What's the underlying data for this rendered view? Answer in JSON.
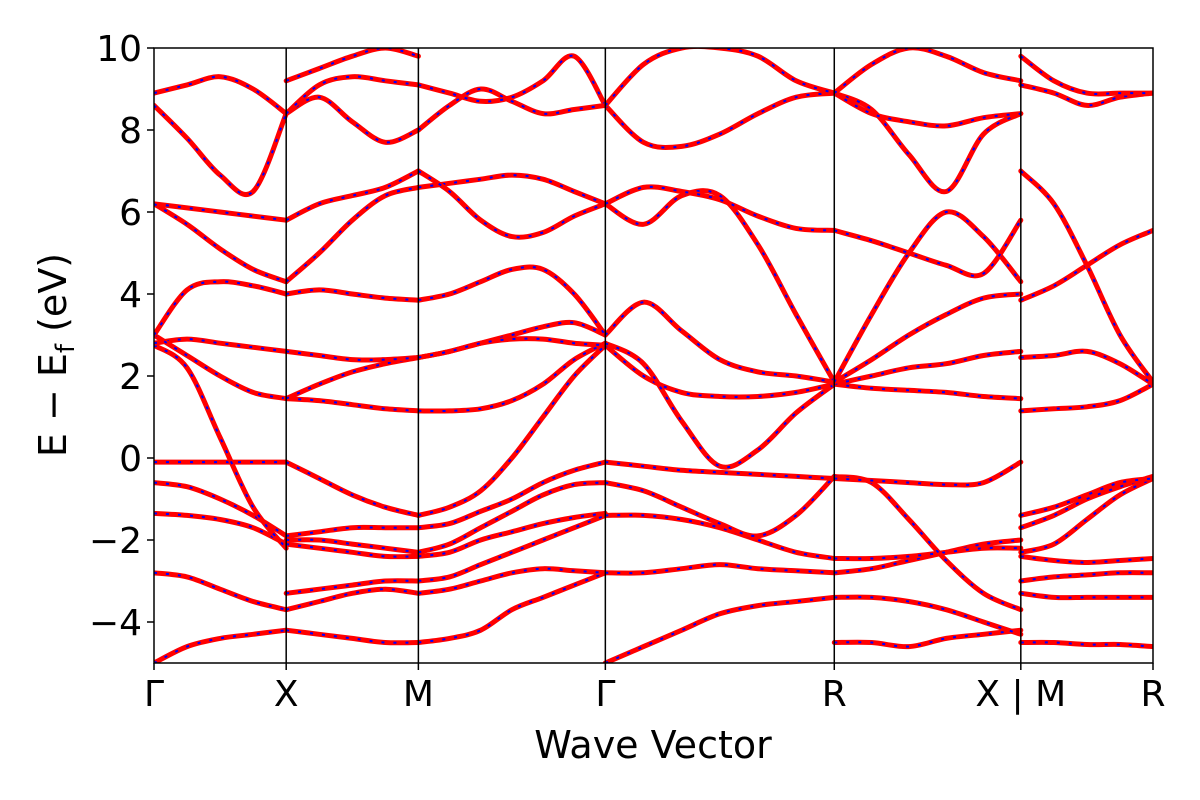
{
  "chart_data": {
    "type": "line",
    "title": "",
    "xlabel": "Wave Vector",
    "ylabel": "E − E",
    "ylabel_subscript": "f",
    "ylabel_unit": " (eV)",
    "ylim": [
      -5,
      10
    ],
    "xlim": [
      0,
      1
    ],
    "yticks": [
      -4,
      -2,
      0,
      2,
      4,
      6,
      8,
      10
    ],
    "ytick_labels": [
      "−4",
      "−2",
      "0",
      "2",
      "4",
      "6",
      "8",
      "10"
    ],
    "kpoints": [
      {
        "label": "Γ",
        "x": 0.0
      },
      {
        "label": "X",
        "x": 0.1525
      },
      {
        "label": "M",
        "x": 0.305
      },
      {
        "label": "Γ",
        "x": 0.5207
      },
      {
        "label": "R",
        "x": 0.7848
      },
      {
        "label": "X | M",
        "x": 1.0
      },
      {
        "label": "R",
        "x": 1.1525
      }
    ],
    "xrange": [
      0,
      1.1525
    ],
    "grid": false,
    "legend": "none",
    "colors": {
      "line": "#ff0000",
      "dash": "#0000ff",
      "kline": "#000000"
    },
    "segments": [
      {
        "name": "Gamma-X",
        "start": 0.0,
        "end": 0.1525,
        "bands": [
          [
            -5.0,
            -4.6,
            -4.4,
            -4.3,
            -4.2
          ],
          [
            -2.8,
            -2.9,
            -3.2,
            -3.5,
            -3.7
          ],
          [
            -1.35,
            -1.4,
            -1.5,
            -1.7,
            -2.1
          ],
          [
            -0.6,
            -0.7,
            -1.0,
            -1.4,
            -1.9
          ],
          [
            -0.1,
            -0.1,
            -0.1,
            -0.1,
            -0.1
          ],
          [
            2.75,
            2.2,
            0.5,
            -1.2,
            -2.2
          ],
          [
            2.8,
            2.9,
            2.8,
            2.7,
            2.6
          ],
          [
            3.0,
            2.5,
            2.0,
            1.6,
            1.45
          ],
          [
            3.0,
            4.1,
            4.3,
            4.2,
            4.0
          ],
          [
            6.2,
            6.1,
            6.0,
            5.9,
            5.8
          ],
          [
            6.2,
            5.7,
            5.1,
            4.6,
            4.3
          ],
          [
            8.6,
            7.8,
            6.9,
            6.5,
            8.4
          ],
          [
            8.9,
            9.1,
            9.3,
            9.0,
            8.4
          ]
        ]
      },
      {
        "name": "X-M",
        "start": 0.1525,
        "end": 0.305,
        "bands": [
          [
            -4.2,
            -4.3,
            -4.4,
            -4.5,
            -4.5
          ],
          [
            -3.7,
            -3.5,
            -3.3,
            -3.2,
            -3.3
          ],
          [
            -3.3,
            -3.2,
            -3.1,
            -3.0,
            -3.0
          ],
          [
            -2.1,
            -2.2,
            -2.3,
            -2.4,
            -2.4
          ],
          [
            -2.0,
            -2.0,
            -2.1,
            -2.2,
            -2.3
          ],
          [
            -1.9,
            -1.8,
            -1.7,
            -1.7,
            -1.7
          ],
          [
            -0.1,
            -0.5,
            -0.9,
            -1.2,
            -1.4
          ],
          [
            1.45,
            1.4,
            1.3,
            1.2,
            1.15
          ],
          [
            1.45,
            1.8,
            2.1,
            2.3,
            2.45
          ],
          [
            2.6,
            2.5,
            2.4,
            2.4,
            2.45
          ],
          [
            4.0,
            4.1,
            4.0,
            3.9,
            3.85
          ],
          [
            4.3,
            5.0,
            5.8,
            6.4,
            6.6
          ],
          [
            5.8,
            6.2,
            6.4,
            6.6,
            7.0
          ],
          [
            8.4,
            8.8,
            8.2,
            7.7,
            8.0
          ],
          [
            8.4,
            9.1,
            9.3,
            9.2,
            9.1
          ],
          [
            9.2,
            9.5,
            9.8,
            10.0,
            9.8
          ]
        ]
      },
      {
        "name": "M-Gamma",
        "start": 0.305,
        "end": 0.5207,
        "bands": [
          [
            -4.5,
            -4.4,
            -4.2,
            -3.7,
            -3.4,
            -3.1,
            -2.8
          ],
          [
            -3.3,
            -3.2,
            -3.0,
            -2.8,
            -2.7,
            -2.75,
            -2.8
          ],
          [
            -3.0,
            -2.9,
            -2.6,
            -2.3,
            -2.0,
            -1.7,
            -1.4
          ],
          [
            -2.4,
            -2.3,
            -2.0,
            -1.8,
            -1.6,
            -1.45,
            -1.35
          ],
          [
            -2.3,
            -2.1,
            -1.7,
            -1.3,
            -0.9,
            -0.65,
            -0.6
          ],
          [
            -1.7,
            -1.6,
            -1.3,
            -1.0,
            -0.6,
            -0.3,
            -0.1
          ],
          [
            -1.4,
            -1.2,
            -0.8,
            0.0,
            1.0,
            2.0,
            2.75
          ],
          [
            1.15,
            1.15,
            1.2,
            1.4,
            1.8,
            2.4,
            2.8
          ],
          [
            2.45,
            2.6,
            2.8,
            3.0,
            3.2,
            3.3,
            3.0
          ],
          [
            2.45,
            2.6,
            2.8,
            2.9,
            2.9,
            2.8,
            2.75
          ],
          [
            3.85,
            4.0,
            4.3,
            4.6,
            4.6,
            4.0,
            3.0
          ],
          [
            6.6,
            6.7,
            6.8,
            6.9,
            6.8,
            6.5,
            6.2
          ],
          [
            7.0,
            6.5,
            5.8,
            5.4,
            5.5,
            5.9,
            6.2
          ],
          [
            8.0,
            8.6,
            9.0,
            8.7,
            8.4,
            8.5,
            8.6
          ],
          [
            9.1,
            8.9,
            8.7,
            8.8,
            9.2,
            9.8,
            8.6
          ]
        ]
      },
      {
        "name": "Gamma-R",
        "start": 0.5207,
        "end": 0.7848,
        "bands": [
          [
            -5.0,
            -4.6,
            -4.2,
            -3.8,
            -3.6,
            -3.5,
            -3.4
          ],
          [
            -2.8,
            -2.8,
            -2.7,
            -2.6,
            -2.7,
            -2.75,
            -2.8
          ],
          [
            -1.4,
            -1.4,
            -1.5,
            -1.7,
            -2.0,
            -2.3,
            -2.45
          ],
          [
            -0.6,
            -0.8,
            -1.2,
            -1.6,
            -1.9,
            -1.4,
            -0.45
          ],
          [
            -0.1,
            -0.2,
            -0.3,
            -0.35,
            -0.4,
            -0.45,
            -0.5
          ],
          [
            2.75,
            2.0,
            1.6,
            1.5,
            1.5,
            1.6,
            1.8
          ],
          [
            2.8,
            2.3,
            0.9,
            -0.2,
            0.2,
            1.1,
            1.8
          ],
          [
            3.0,
            3.8,
            3.1,
            2.4,
            2.1,
            2.0,
            1.85
          ],
          [
            6.2,
            5.7,
            6.4,
            6.4,
            5.2,
            3.5,
            1.85
          ],
          [
            6.2,
            6.6,
            6.5,
            6.3,
            5.9,
            5.6,
            5.55
          ],
          [
            8.6,
            7.7,
            7.6,
            7.9,
            8.4,
            8.8,
            8.9
          ],
          [
            8.6,
            9.6,
            10.0,
            10.0,
            9.8,
            9.2,
            8.9
          ]
        ]
      },
      {
        "name": "R-X",
        "start": 0.7848,
        "end": 1.0,
        "bands": [
          [
            -4.5,
            -4.5,
            -4.6,
            -4.4,
            -4.3,
            -4.2
          ],
          [
            -3.4,
            -3.4,
            -3.5,
            -3.7,
            -4.0,
            -4.3
          ],
          [
            -2.8,
            -2.7,
            -2.5,
            -2.3,
            -2.1,
            -2.0
          ],
          [
            -2.45,
            -2.45,
            -2.4,
            -2.3,
            -2.2,
            -2.2
          ],
          [
            -0.45,
            -0.6,
            -1.5,
            -2.5,
            -3.3,
            -3.7
          ],
          [
            -0.5,
            -0.55,
            -0.6,
            -0.65,
            -0.6,
            -0.1
          ],
          [
            1.8,
            1.7,
            1.65,
            1.6,
            1.5,
            1.45
          ],
          [
            1.8,
            2.0,
            2.2,
            2.3,
            2.5,
            2.6
          ],
          [
            1.85,
            2.4,
            3.0,
            3.5,
            3.9,
            4.0
          ],
          [
            1.85,
            3.5,
            5.0,
            6.0,
            5.4,
            4.3
          ],
          [
            5.55,
            5.3,
            5.0,
            4.7,
            4.5,
            5.8
          ],
          [
            8.9,
            8.5,
            7.4,
            6.5,
            7.9,
            8.4
          ],
          [
            8.9,
            8.4,
            8.2,
            8.1,
            8.3,
            8.4
          ],
          [
            8.9,
            9.6,
            10.0,
            9.8,
            9.4,
            9.2
          ]
        ]
      },
      {
        "name": "M-R",
        "start": 1.0,
        "end": 1.1525,
        "bands": [
          [
            -4.5,
            -4.5,
            -4.55,
            -4.55,
            -4.6
          ],
          [
            -3.3,
            -3.4,
            -3.4,
            -3.4,
            -3.4
          ],
          [
            -3.0,
            -2.9,
            -2.85,
            -2.8,
            -2.8
          ],
          [
            -2.4,
            -2.5,
            -2.55,
            -2.5,
            -2.45
          ],
          [
            -2.3,
            -2.1,
            -1.5,
            -0.9,
            -0.5
          ],
          [
            -1.7,
            -1.4,
            -1.0,
            -0.7,
            -0.45
          ],
          [
            -1.4,
            -1.2,
            -0.9,
            -0.6,
            -0.5
          ],
          [
            1.15,
            1.2,
            1.25,
            1.4,
            1.8
          ],
          [
            2.45,
            2.5,
            2.6,
            2.3,
            1.8
          ],
          [
            3.85,
            4.2,
            4.7,
            5.2,
            5.55
          ],
          [
            7.0,
            6.2,
            4.7,
            3.0,
            1.85
          ],
          [
            9.1,
            8.9,
            8.6,
            8.8,
            8.9
          ],
          [
            9.8,
            9.2,
            8.9,
            8.9,
            8.9
          ]
        ]
      }
    ]
  }
}
